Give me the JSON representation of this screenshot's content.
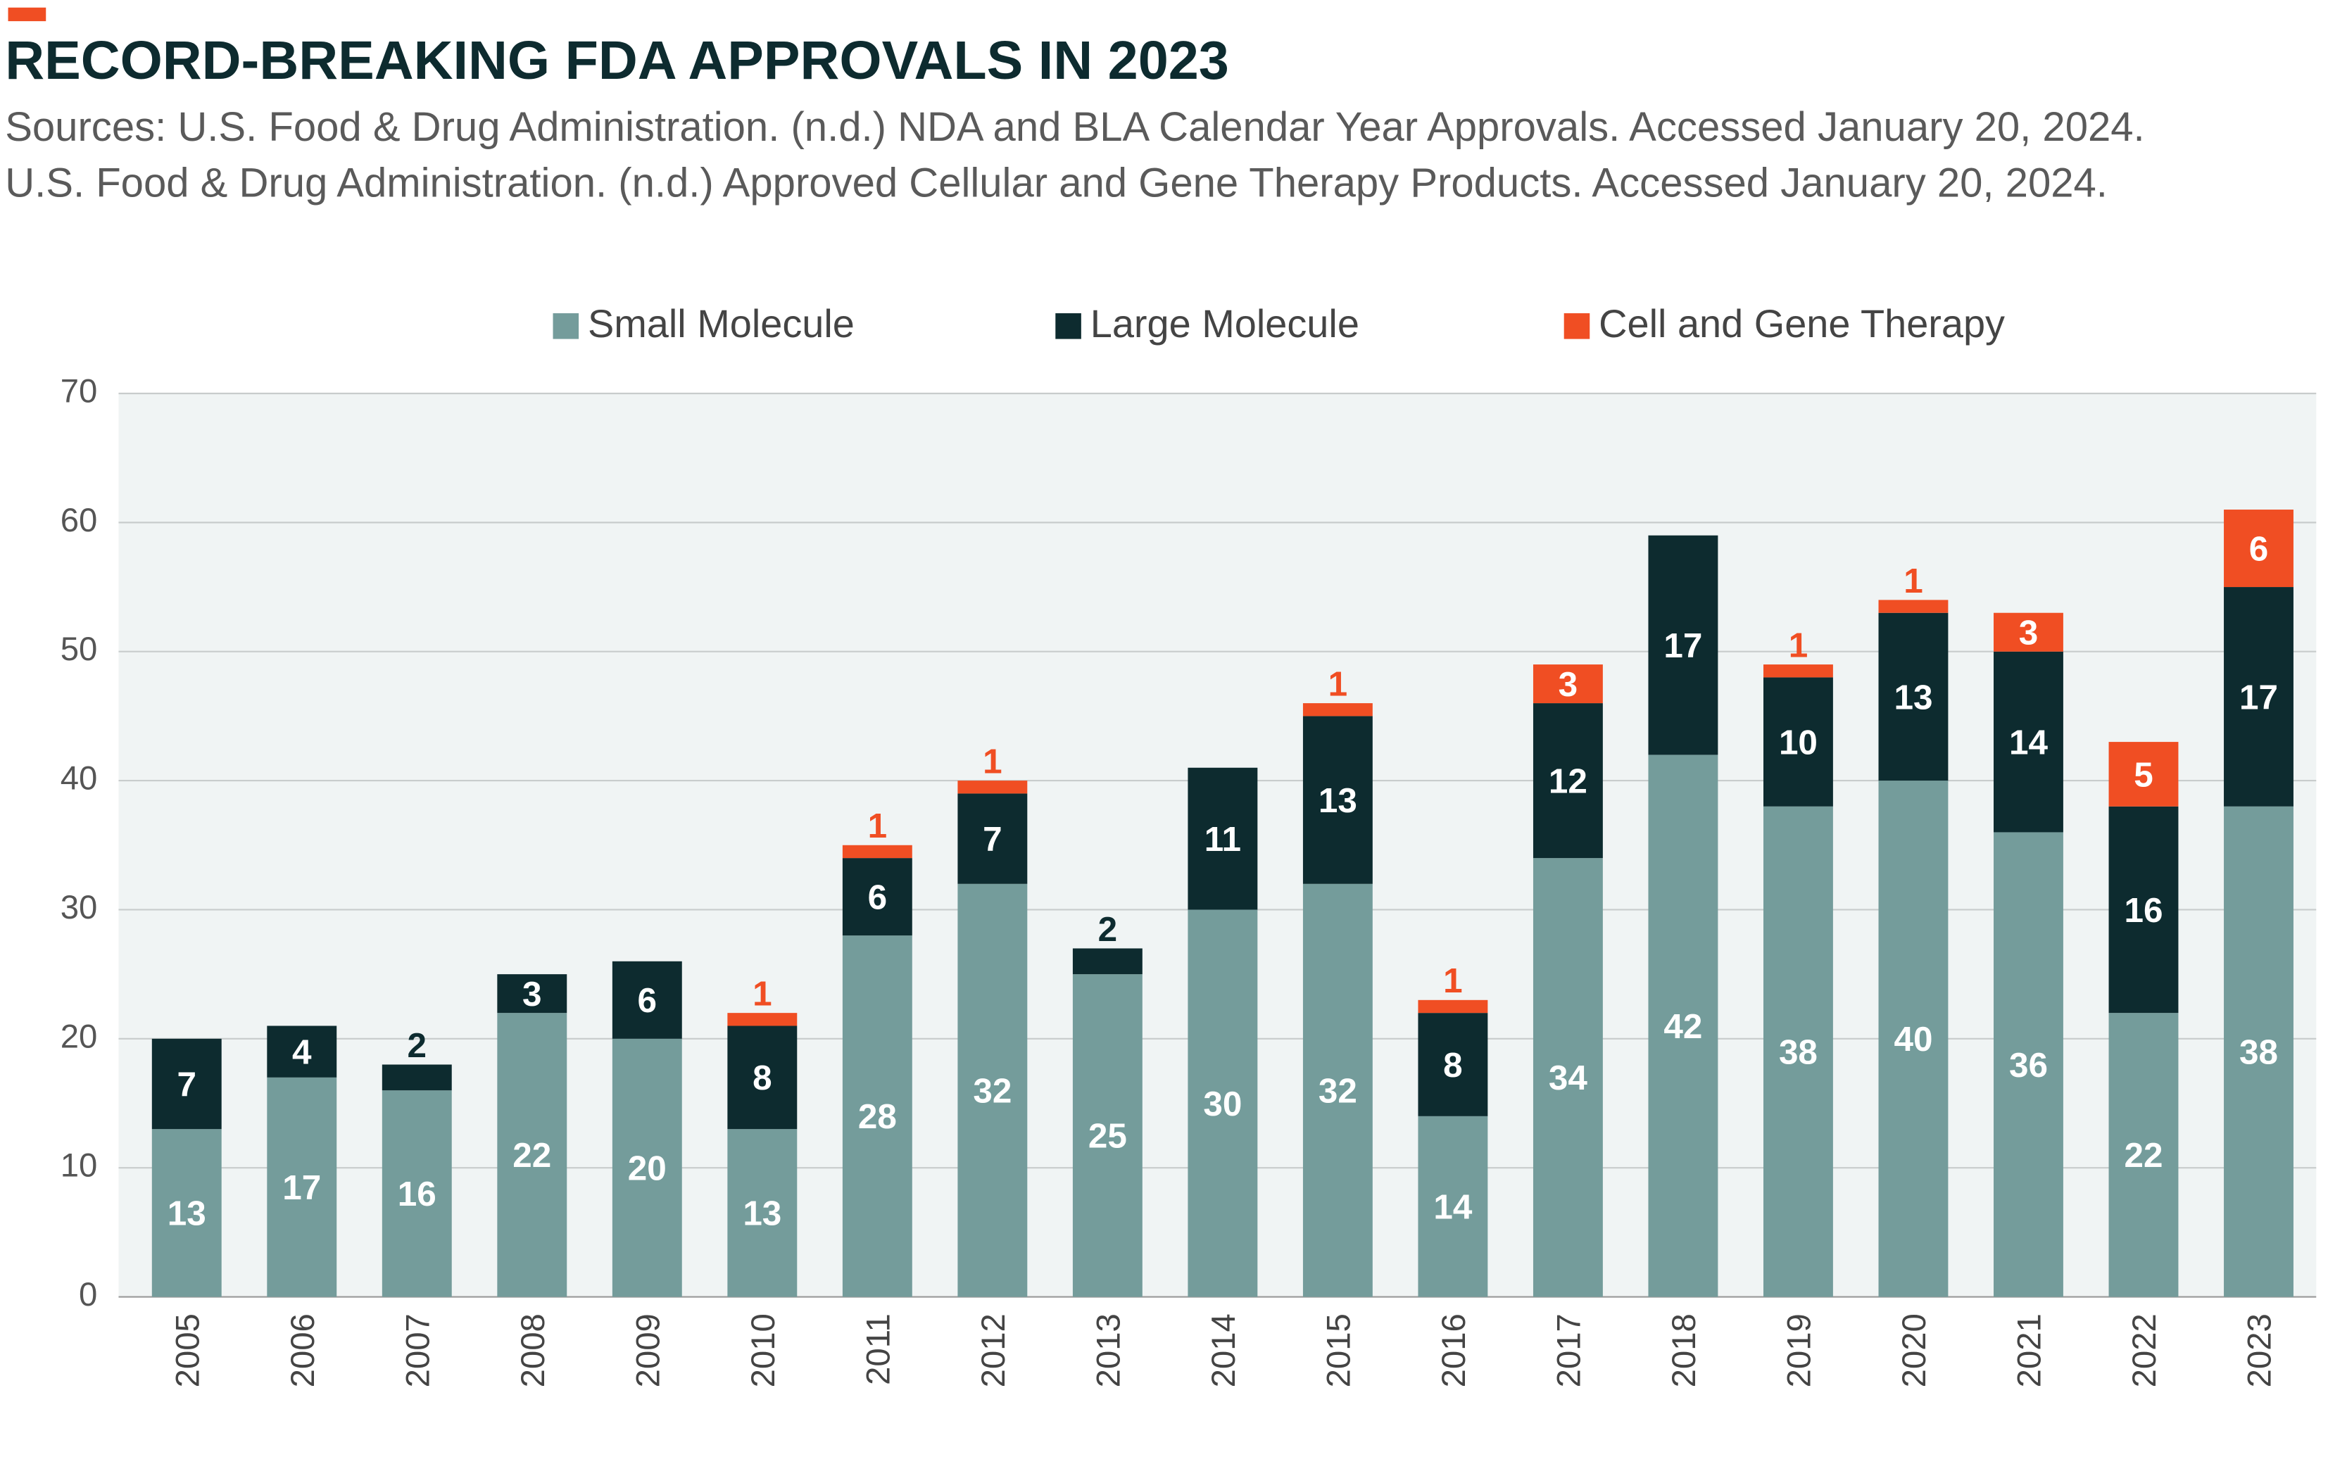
{
  "chart_data": {
    "type": "stacked-bar",
    "title": "RECORD-BREAKING FDA APPROVALS IN 2023",
    "subtitle": [
      "Sources: U.S. Food & Drug Administration. (n.d.) NDA and BLA Calendar Year Approvals. Accessed January 20, 2024.",
      "U.S. Food & Drug Administration. (n.d.) Approved Cellular and Gene Therapy Products. Accessed January 20, 2024."
    ],
    "categories": [
      "2005",
      "2006",
      "2007",
      "2008",
      "2009",
      "2010",
      "2011",
      "2012",
      "2013",
      "2014",
      "2015",
      "2016",
      "2017",
      "2018",
      "2019",
      "2020",
      "2021",
      "2022",
      "2023"
    ],
    "series": [
      {
        "name": "Small Molecule",
        "color": "#749c9b",
        "values": [
          13,
          17,
          16,
          22,
          20,
          13,
          28,
          32,
          25,
          30,
          32,
          14,
          34,
          42,
          38,
          40,
          36,
          22,
          38
        ]
      },
      {
        "name": "Large Molecule",
        "color": "#0d2b2f",
        "values": [
          7,
          4,
          2,
          3,
          6,
          8,
          6,
          7,
          2,
          11,
          13,
          8,
          12,
          17,
          10,
          13,
          14,
          16,
          17
        ]
      },
      {
        "name": "Cell and Gene Therapy",
        "color": "#f04e23",
        "values": [
          null,
          null,
          null,
          null,
          null,
          1,
          1,
          1,
          null,
          null,
          1,
          1,
          3,
          null,
          1,
          1,
          3,
          5,
          6
        ]
      }
    ],
    "ylim": [
      0,
      70
    ],
    "yticks": [
      0,
      10,
      20,
      30,
      40,
      50,
      60,
      70
    ],
    "grid": true,
    "legend": "top"
  }
}
